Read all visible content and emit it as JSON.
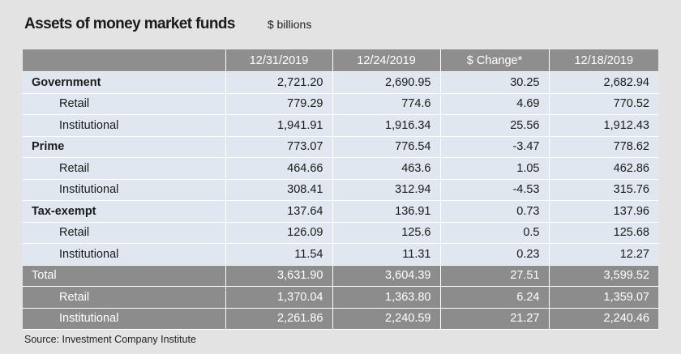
{
  "header": {
    "title": "Assets of money market funds",
    "unit": "$ billions"
  },
  "chart_data": {
    "type": "table",
    "columns": [
      "",
      "12/31/2019",
      "12/24/2019",
      "$ Change*",
      "12/18/2019"
    ],
    "rows": [
      {
        "kind": "group",
        "shade": "light",
        "label": "Government",
        "values": [
          "2,721.20",
          "2,690.95",
          "30.25",
          "2,682.94"
        ]
      },
      {
        "kind": "sub",
        "shade": "light",
        "label": "Retail",
        "values": [
          "779.29",
          "774.6",
          "4.69",
          "770.52"
        ]
      },
      {
        "kind": "sub",
        "shade": "light",
        "label": "Institutional",
        "values": [
          "1,941.91",
          "1,916.34",
          "25.56",
          "1,912.43"
        ]
      },
      {
        "kind": "group",
        "shade": "light",
        "label": "Prime",
        "values": [
          "773.07",
          "776.54",
          "-3.47",
          "778.62"
        ]
      },
      {
        "kind": "sub",
        "shade": "light",
        "label": "Retail",
        "values": [
          "464.66",
          "463.6",
          "1.05",
          "462.86"
        ]
      },
      {
        "kind": "sub",
        "shade": "light",
        "label": "Institutional",
        "values": [
          "308.41",
          "312.94",
          "-4.53",
          "315.76"
        ]
      },
      {
        "kind": "group",
        "shade": "light",
        "label": "Tax-exempt",
        "values": [
          "137.64",
          "136.91",
          "0.73",
          "137.96"
        ]
      },
      {
        "kind": "sub",
        "shade": "light",
        "label": "Retail",
        "values": [
          "126.09",
          "125.6",
          "0.5",
          "125.68"
        ]
      },
      {
        "kind": "sub",
        "shade": "light",
        "label": "Institutional",
        "values": [
          "11.54",
          "11.31",
          "0.23",
          "12.27"
        ]
      },
      {
        "kind": "total",
        "shade": "dark",
        "label": "Total",
        "values": [
          "3,631.90",
          "3,604.39",
          "27.51",
          "3,599.52"
        ]
      },
      {
        "kind": "sub",
        "shade": "dark",
        "label": "Retail",
        "values": [
          "1,370.04",
          "1,363.80",
          "6.24",
          "1,359.07"
        ]
      },
      {
        "kind": "sub",
        "shade": "dark",
        "label": "Institutional",
        "values": [
          "2,261.86",
          "2,240.59",
          "21.27",
          "2,240.46"
        ]
      }
    ]
  },
  "footer": {
    "source": "Source: Investment Company Institute"
  },
  "colors": {
    "background": "#e3e3e3",
    "header_fill": "#8e8e8e",
    "row_fill_light": "#e1e7f1",
    "row_fill_dark": "#8c8c8c"
  }
}
